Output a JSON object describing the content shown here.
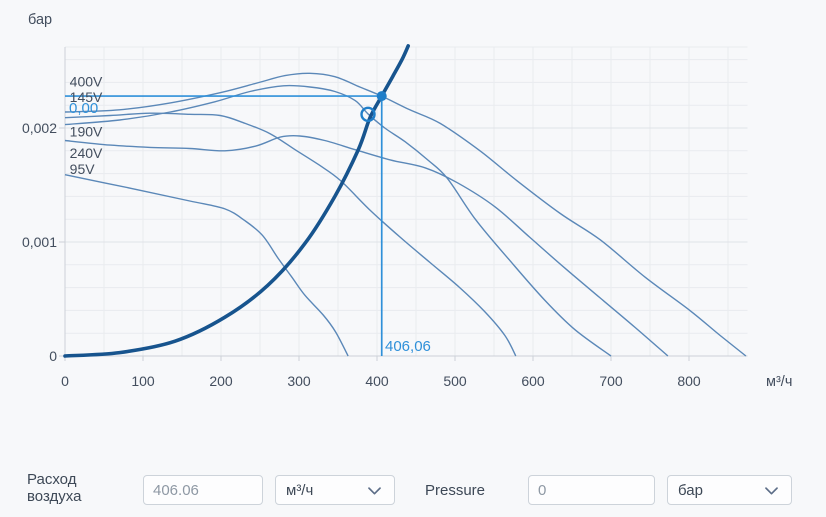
{
  "chart": {
    "y_unit_label": "бар",
    "x_unit_label": "м³/ч",
    "x_ticks": [
      {
        "value": 0,
        "label": "0"
      },
      {
        "value": 100,
        "label": "100"
      },
      {
        "value": 200,
        "label": "200"
      },
      {
        "value": 300,
        "label": "300"
      },
      {
        "value": 400,
        "label": "400"
      },
      {
        "value": 500,
        "label": "500"
      },
      {
        "value": 600,
        "label": "600"
      },
      {
        "value": 700,
        "label": "700"
      },
      {
        "value": 800,
        "label": "800"
      }
    ],
    "y_ticks": [
      {
        "value": 0,
        "label": "0"
      },
      {
        "value": 0.001,
        "label": "0,001"
      },
      {
        "value": 0.002,
        "label": "0,002"
      }
    ],
    "curve_labels": [
      {
        "text": "400V",
        "flow": 6,
        "pressure": 0.00241
      },
      {
        "text": "145V",
        "flow": 6,
        "pressure": 0.00227
      },
      {
        "text": "190V",
        "flow": 6,
        "pressure": 0.00197
      },
      {
        "text": "240V",
        "flow": 6,
        "pressure": 0.00178
      },
      {
        "text": "95V",
        "flow": 6,
        "pressure": 0.00164
      }
    ]
  },
  "chart_data": {
    "type": "line",
    "title": "",
    "xlabel": "м³/ч",
    "ylabel": "бар",
    "xlim": [
      0,
      875
    ],
    "ylim": [
      0,
      0.00271
    ],
    "grid": {
      "shown": true,
      "x_minor_step": 50,
      "y_minor_step": 0.0002,
      "y_major_step": 0.001
    },
    "legend_position": "top-left-inline",
    "series": [
      {
        "name": "400V",
        "role": "fan-curve",
        "points": [
          [
            0,
            0.00214
          ],
          [
            70,
            0.00216
          ],
          [
            135,
            0.00222
          ],
          [
            199,
            0.00231
          ],
          [
            244,
            0.00239
          ],
          [
            282,
            0.00246
          ],
          [
            314,
            0.00248
          ],
          [
            346,
            0.00245
          ],
          [
            378,
            0.00236
          ],
          [
            406,
            0.00228
          ],
          [
            442,
            0.00216
          ],
          [
            481,
            0.00204
          ],
          [
            532,
            0.0018
          ],
          [
            579,
            0.00154
          ],
          [
            635,
            0.00125
          ],
          [
            686,
            0.00102
          ],
          [
            744,
            0.00069
          ],
          [
            801,
            0.0004
          ],
          [
            840,
            0.00018
          ],
          [
            873,
            0
          ]
        ]
      },
      {
        "name": "240V",
        "role": "fan-curve",
        "points": [
          [
            0,
            0.00189
          ],
          [
            58,
            0.00185
          ],
          [
            109,
            0.00183
          ],
          [
            160,
            0.00182
          ],
          [
            205,
            0.0018
          ],
          [
            244,
            0.00184
          ],
          [
            276,
            0.00192
          ],
          [
            301,
            0.00193
          ],
          [
            333,
            0.00189
          ],
          [
            372,
            0.00181
          ],
          [
            417,
            0.00172
          ],
          [
            462,
            0.00165
          ],
          [
            503,
            0.00152
          ],
          [
            551,
            0.00131
          ],
          [
            596,
            0.00104
          ],
          [
            641,
            0.00077
          ],
          [
            686,
            0.00051
          ],
          [
            731,
            0.00025
          ],
          [
            773,
            0
          ]
        ]
      },
      {
        "name": "190V",
        "role": "fan-curve",
        "points": [
          [
            0,
            0.00203
          ],
          [
            70,
            0.00207
          ],
          [
            135,
            0.00214
          ],
          [
            192,
            0.00223
          ],
          [
            237,
            0.00232
          ],
          [
            280,
            0.00237
          ],
          [
            314,
            0.00236
          ],
          [
            346,
            0.00232
          ],
          [
            372,
            0.00224
          ],
          [
            389,
            0.00212
          ],
          [
            410,
            0.002
          ],
          [
            436,
            0.00188
          ],
          [
            465,
            0.00172
          ],
          [
            490,
            0.00156
          ],
          [
            526,
            0.0012
          ],
          [
            570,
            0.00084
          ],
          [
            615,
            0.00049
          ],
          [
            654,
            0.00023
          ],
          [
            700,
            0
          ]
        ]
      },
      {
        "name": "145V",
        "role": "fan-curve",
        "points": [
          [
            0,
            0.00209
          ],
          [
            58,
            0.00211
          ],
          [
            109,
            0.00213
          ],
          [
            160,
            0.00212
          ],
          [
            199,
            0.00211
          ],
          [
            231,
            0.00204
          ],
          [
            263,
            0.00195
          ],
          [
            295,
            0.00181
          ],
          [
            327,
            0.00167
          ],
          [
            353,
            0.00154
          ],
          [
            391,
            0.00128
          ],
          [
            430,
            0.00104
          ],
          [
            468,
            0.00082
          ],
          [
            506,
            0.0006
          ],
          [
            538,
            0.00039
          ],
          [
            564,
            0.00018
          ],
          [
            578,
            0
          ]
        ]
      },
      {
        "name": "95V",
        "role": "fan-curve",
        "points": [
          [
            0,
            0.00159
          ],
          [
            85,
            0.00147
          ],
          [
            160,
            0.00136
          ],
          [
            205,
            0.00129
          ],
          [
            230,
            0.00119
          ],
          [
            253,
            0.00106
          ],
          [
            273,
            0.00086
          ],
          [
            291,
            0.00069
          ],
          [
            308,
            0.00053
          ],
          [
            331,
            0.00036
          ],
          [
            347,
            0.00021
          ],
          [
            363,
            0
          ]
        ]
      },
      {
        "name": "system-curve",
        "role": "system-curve",
        "points": [
          [
            0,
            0
          ],
          [
            70,
            3e-05
          ],
          [
            141,
            0.00013
          ],
          [
            205,
            0.00034
          ],
          [
            260,
            0.00062
          ],
          [
            308,
            0.00099
          ],
          [
            346,
            0.0014
          ],
          [
            376,
            0.00181
          ],
          [
            391,
            0.00209
          ],
          [
            406.06,
            0.00228
          ],
          [
            420,
            0.00245
          ],
          [
            432,
            0.0026
          ],
          [
            440,
            0.00272
          ]
        ]
      }
    ]
  },
  "operating_point": {
    "flow": 406.06,
    "pressure": 0.00228,
    "flow_label": "406,06",
    "pressure_label": "0,00"
  },
  "intersection_marker": {
    "flow": 388.5,
    "pressure": 0.00212
  },
  "controls": {
    "flow": {
      "label_line1": "Расход",
      "label_line2": "воздуха",
      "value": "406.06",
      "unit": "м³/ч"
    },
    "pressure": {
      "label": "Pressure",
      "value": "0",
      "unit": "бар"
    }
  },
  "colors": {
    "background": "#f7f8fa",
    "accent_blue": "#2f90d9",
    "marker_blue": "#1f7ec9",
    "fan_curve": "#5b88b8",
    "system_curve": "#17548e",
    "text": "#434e5e",
    "grid_minor": "#e9ebef",
    "grid_major": "#dfe3e8",
    "spine": "#ccd1d8"
  }
}
